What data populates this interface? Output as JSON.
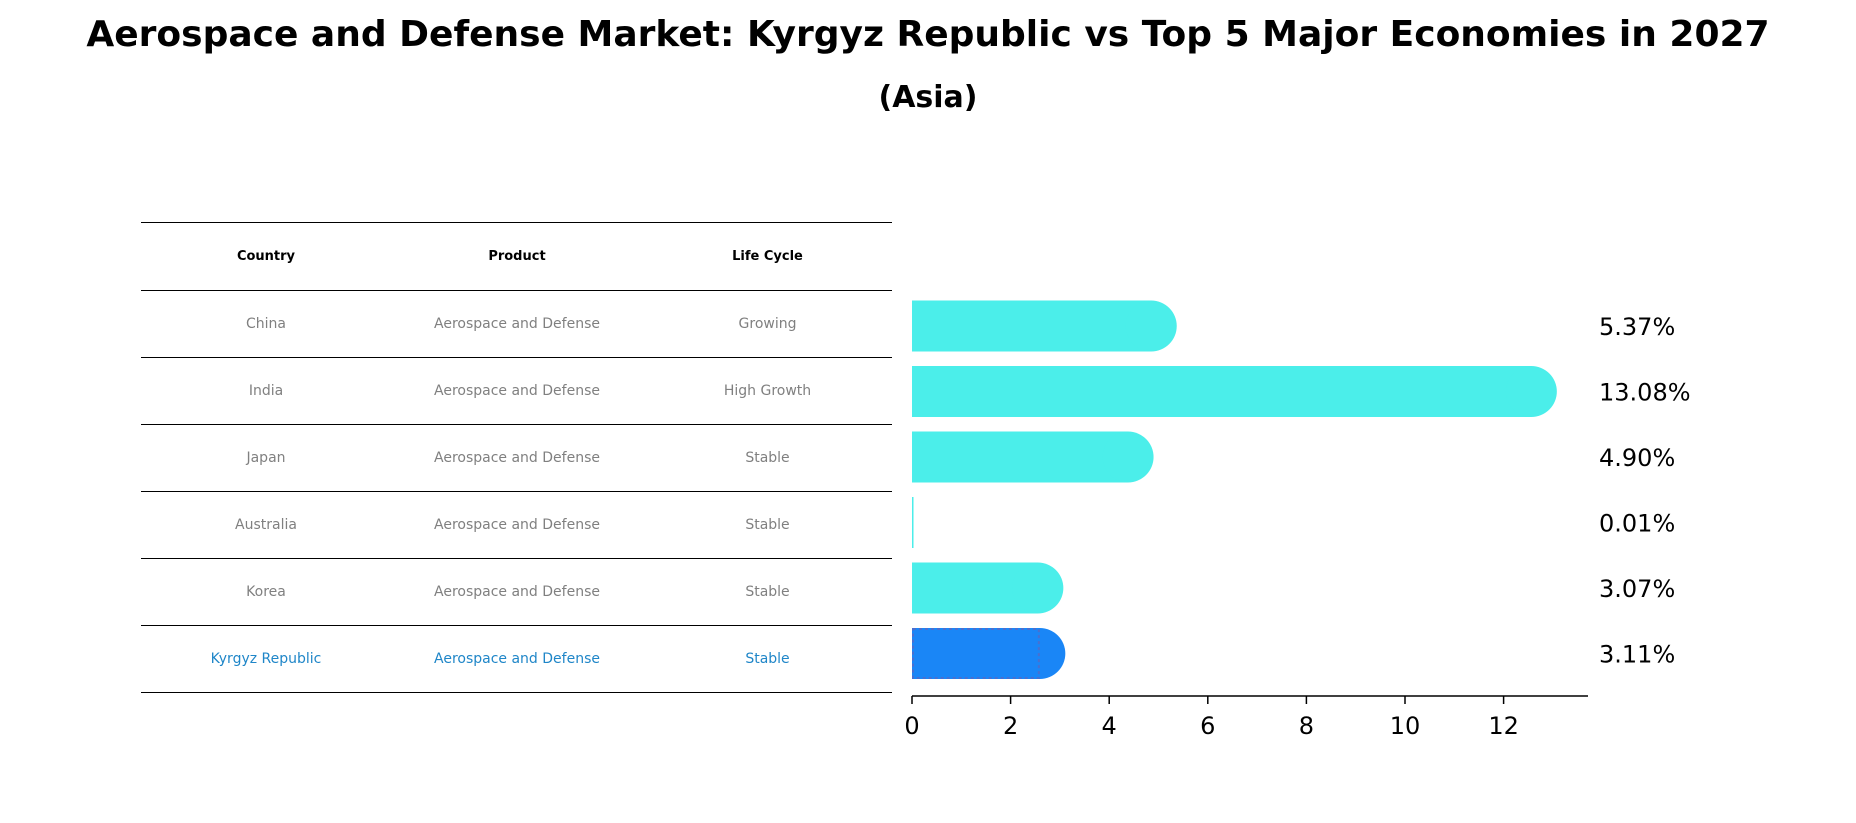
{
  "title": "Aerospace and Defense Market: Kyrgyz Republic vs Top 5 Major Economies in 2027",
  "subtitle": "(Asia)",
  "table": {
    "headers": [
      "Country",
      "Product",
      "Life Cycle"
    ],
    "rows": [
      {
        "country": "China",
        "product": "Aerospace and Defense",
        "life_cycle": "Growing"
      },
      {
        "country": "India",
        "product": "Aerospace and Defense",
        "life_cycle": "High Growth"
      },
      {
        "country": "Japan",
        "product": "Aerospace and Defense",
        "life_cycle": "Stable"
      },
      {
        "country": "Australia",
        "product": "Aerospace and Defense",
        "life_cycle": "Stable"
      },
      {
        "country": "Korea",
        "product": "Aerospace and Defense",
        "life_cycle": "Stable"
      },
      {
        "country": "Kyrgyz Republic",
        "product": "Aerospace and Defense",
        "life_cycle": "Stable"
      }
    ]
  },
  "colors": {
    "bar": "#4beeea",
    "highlight": "#1a86f6",
    "highlight_text": "#1f86c8"
  },
  "chart_data": {
    "type": "bar",
    "orientation": "horizontal",
    "categories": [
      "China",
      "India",
      "Japan",
      "Australia",
      "Korea",
      "Kyrgyz Republic"
    ],
    "values": [
      5.37,
      13.08,
      4.9,
      0.01,
      3.07,
      3.11
    ],
    "value_labels": [
      "5.37%",
      "13.08%",
      "4.90%",
      "0.01%",
      "3.07%",
      "3.11%"
    ],
    "highlight": "Kyrgyz Republic",
    "xlim": [
      0,
      13.7
    ],
    "xticks": [
      0,
      2,
      4,
      6,
      8,
      10,
      12
    ],
    "xlabel": "",
    "ylabel": ""
  }
}
